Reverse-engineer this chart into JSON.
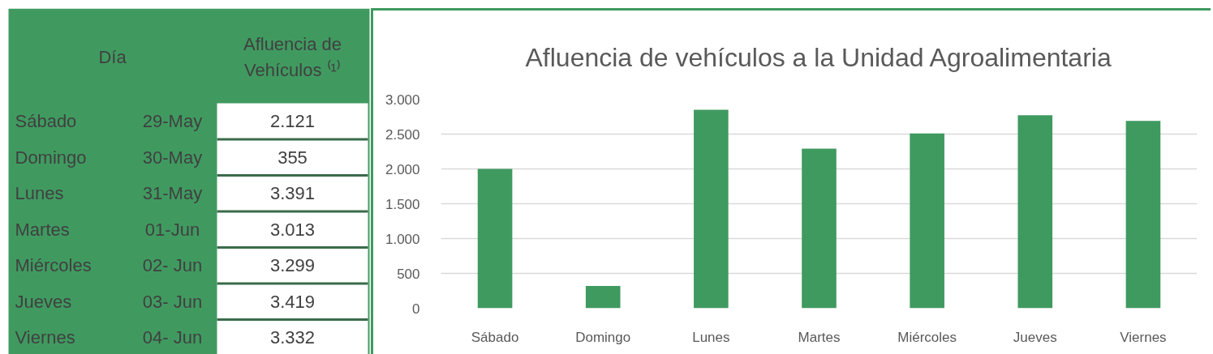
{
  "chart_data": [
    {
      "type": "other",
      "annotations": [
        "Día",
        "Afluencia de Vehículos ⁽¹⁾",
        "Sábado",
        "29-May",
        "2.121",
        "Domingo",
        "30-May",
        "355",
        "Lunes",
        "31-May",
        "3.391",
        "Martes",
        "01-Jun",
        "3.013",
        "Miércoles",
        "02- Jun",
        "3.299",
        "Jueves",
        "03- Jun",
        "3.419",
        "Viernes",
        "04- Jun",
        "3.332"
      ]
    },
    {
      "type": "bar",
      "title": "Afluencia de vehículos a la Unidad Agroalimentaria",
      "categories": [
        "Sábado",
        "Domingo",
        "Lunes",
        "Martes",
        "Miércoles",
        "Jueves",
        "Viernes"
      ],
      "values": [
        2000,
        320,
        2850,
        2290,
        2510,
        2770,
        2690
      ],
      "color": "#3f9a5f",
      "ylim": [
        0,
        3000
      ],
      "yticks": [
        0,
        500,
        {
          "value": 1000,
          "label": "1.000"
        },
        {
          "value": 1500,
          "label": "1.500"
        },
        {
          "value": 2000,
          "label": "2.000"
        },
        {
          "value": 2500,
          "label": "2.500"
        },
        {
          "value": 3000,
          "label": "3.000"
        }
      ],
      "grid": "y"
    }
  ]
}
